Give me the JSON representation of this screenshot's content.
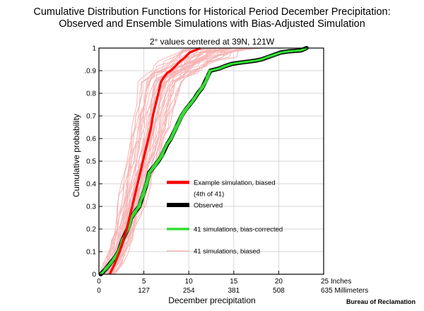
{
  "chart_data": {
    "type": "line",
    "title_line1": "Cumulative Distribution Functions for Historical Period December Precipitation:",
    "title_line2": "Observed and Ensemble Simulations with Bias-Adjusted Simulation",
    "subtitle": "2° values centered at 39N, 121W",
    "xlabel": "December precipitation",
    "ylabel": "Cumulative probability",
    "credit": "Bureau of Reclamation",
    "xlim": [
      0,
      25
    ],
    "ylim": [
      0,
      1
    ],
    "x_ticks_inches": [
      "0",
      "5",
      "10",
      "15",
      "20",
      "25 Inches"
    ],
    "x_ticks_mm": [
      "0",
      "127",
      "254",
      "381",
      "508",
      "635 Millimeters"
    ],
    "y_ticks": [
      "0",
      "0.1",
      "0.2",
      "0.3",
      "0.4",
      "0.5",
      "0.6",
      "0.7",
      "0.8",
      ".0.9",
      "1"
    ],
    "legend": [
      {
        "label": "Example simulation, biased",
        "color": "#ff0000"
      },
      {
        "label": "(4th of 41)",
        "color": null
      },
      {
        "label": "Observed",
        "color": "#000000"
      },
      {
        "label": "41 simulations, bias-corrected",
        "color": "#33dd33"
      },
      {
        "label": "41 simulations, biased",
        "color": "#f7b5b5"
      }
    ],
    "series": [
      {
        "name": "Observed",
        "color": "#000000",
        "x": [
          0.2,
          0.8,
          1.3,
          1.8,
          2.2,
          2.6,
          3.2,
          3.6,
          4.0,
          4.5,
          4.9,
          5.3,
          5.6,
          6.1,
          6.6,
          7.0,
          7.3,
          7.6,
          8.0,
          8.6,
          9.2,
          9.6,
          10.1,
          10.6,
          11.0,
          11.5,
          11.8,
          12.1,
          12.4,
          13.4,
          14.0,
          14.8,
          15.6,
          16.6,
          17.5,
          18.1,
          18.8,
          19.5,
          20.2,
          21.0,
          22.5,
          23.1
        ],
        "y": [
          0.0,
          0.025,
          0.05,
          0.075,
          0.1,
          0.15,
          0.2,
          0.25,
          0.275,
          0.3,
          0.35,
          0.4,
          0.45,
          0.475,
          0.5,
          0.525,
          0.55,
          0.575,
          0.6,
          0.65,
          0.7,
          0.725,
          0.75,
          0.775,
          0.8,
          0.825,
          0.85,
          0.875,
          0.9,
          0.91,
          0.92,
          0.93,
          0.935,
          0.94,
          0.945,
          0.95,
          0.96,
          0.97,
          0.98,
          0.985,
          0.99,
          1.0
        ]
      },
      {
        "name": "Example simulation, biased",
        "color": "#ff0000",
        "x": [
          1.2,
          1.8,
          2.3,
          2.7,
          3.1,
          3.4,
          3.7,
          4.0,
          4.3,
          4.6,
          4.9,
          5.2,
          5.5,
          5.8,
          6.0,
          6.3,
          6.6,
          6.9,
          7.2,
          7.6,
          8.0,
          8.5,
          9.0,
          9.6,
          10.1,
          10.7,
          11.3
        ],
        "y": [
          0.0,
          0.05,
          0.1,
          0.15,
          0.2,
          0.25,
          0.3,
          0.35,
          0.4,
          0.45,
          0.5,
          0.55,
          0.6,
          0.65,
          0.7,
          0.75,
          0.8,
          0.85,
          0.87,
          0.89,
          0.9,
          0.92,
          0.94,
          0.96,
          0.98,
          0.99,
          1.0
        ]
      }
    ],
    "ensemble_biased_count": 41,
    "ensemble_bias_corrected_count": 41
  }
}
